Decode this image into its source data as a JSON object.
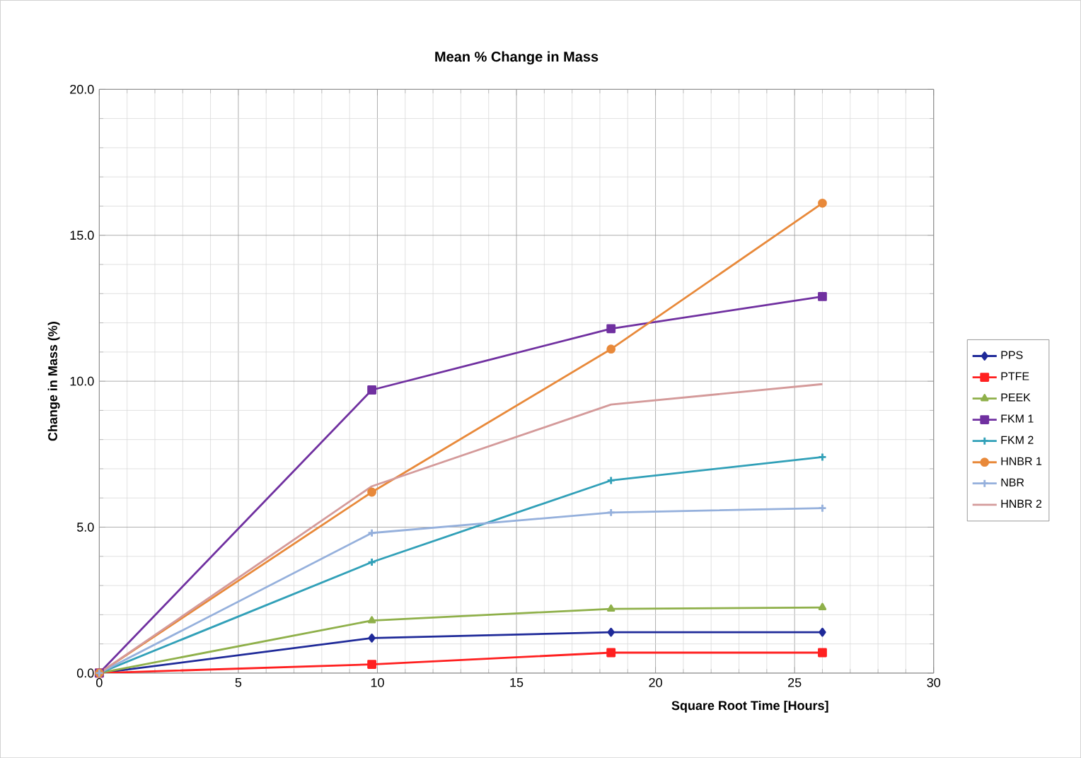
{
  "chart_data": {
    "type": "line",
    "title": "Mean %  Change in Mass",
    "xlabel": "Square Root Time [Hours]",
    "ylabel": "Change in Mass    (%)",
    "x": [
      0,
      9.8,
      18.4,
      26.0
    ],
    "xlim": [
      0,
      30
    ],
    "xticks": [
      0,
      5,
      10,
      15,
      20,
      25,
      30
    ],
    "ylim": [
      0,
      20
    ],
    "yticks": [
      {
        "value": 0,
        "label": "0.0"
      },
      {
        "value": 5,
        "label": "5.0"
      },
      {
        "value": 10,
        "label": "10.0"
      },
      {
        "value": 15,
        "label": "15.0"
      },
      {
        "value": 20,
        "label": "20.0"
      }
    ],
    "grid": true,
    "legend": "right",
    "series": [
      {
        "name": "PPS",
        "color": "#1f2a99",
        "marker": "diamond",
        "values": [
          0,
          1.2,
          1.4,
          1.4
        ]
      },
      {
        "name": "PTFE",
        "color": "#ff2020",
        "marker": "square",
        "values": [
          0,
          0.3,
          0.7,
          0.7
        ]
      },
      {
        "name": "PEEK",
        "color": "#8fb04a",
        "marker": "triangle",
        "values": [
          0,
          1.8,
          2.2,
          2.25
        ]
      },
      {
        "name": "FKM 1",
        "color": "#7030a0",
        "marker": "square",
        "values": [
          0,
          9.7,
          11.8,
          12.9
        ]
      },
      {
        "name": "FKM 2",
        "color": "#31a0b8",
        "marker": "cross",
        "values": [
          0,
          3.8,
          6.6,
          7.4
        ]
      },
      {
        "name": "HNBR 1",
        "color": "#e8893a",
        "marker": "circle",
        "values": [
          0,
          6.2,
          11.1,
          16.1
        ]
      },
      {
        "name": "NBR",
        "color": "#95b0dc",
        "marker": "cross",
        "values": [
          0,
          4.8,
          5.5,
          5.65
        ]
      },
      {
        "name": "HNBR 2",
        "color": "#d49a9a",
        "marker": "none",
        "values": [
          0,
          6.4,
          9.2,
          9.9
        ]
      }
    ]
  }
}
